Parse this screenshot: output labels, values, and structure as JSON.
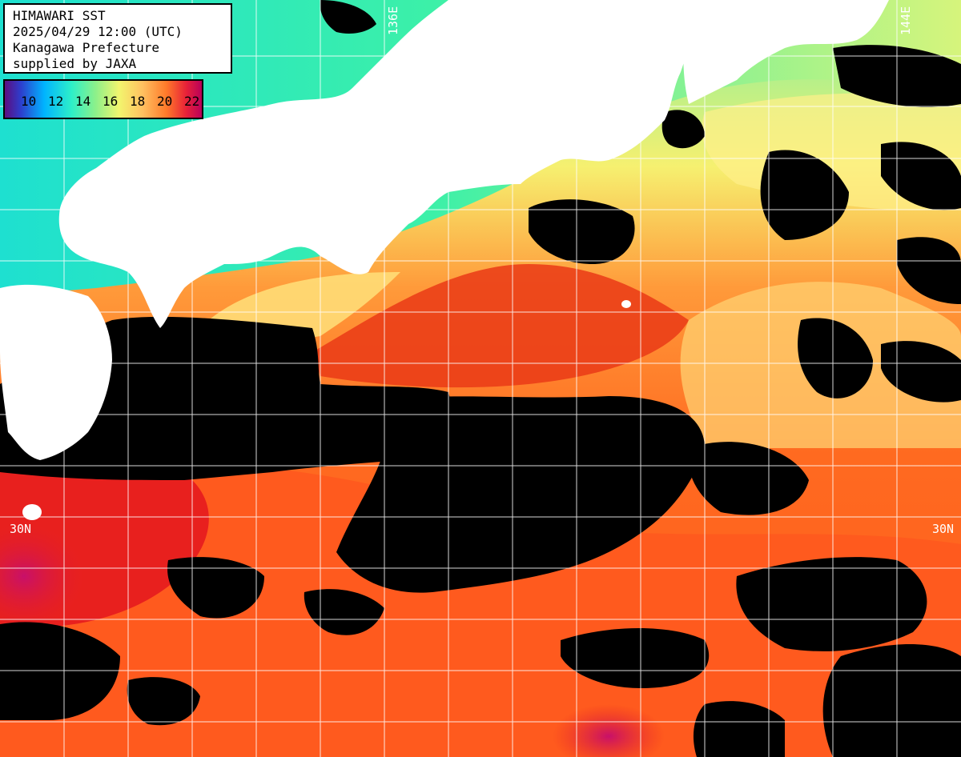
{
  "info": {
    "line1": "HIMAWARI SST",
    "line2": "2025/04/29 12:00 (UTC)",
    "line3": "Kanagawa Prefecture",
    "line4": "supplied by JAXA"
  },
  "legend": {
    "labels": [
      "10",
      "12",
      "14",
      "16",
      "18",
      "20",
      "22"
    ],
    "min_color": "#5c0d80",
    "max_color": "#b8005a"
  },
  "grid_labels": {
    "lat_left": "30N",
    "lat_right": "30N",
    "lon_136": "136E",
    "lon_144": "144E"
  },
  "colors": {
    "land": "#ffffff",
    "cloud_mask": "#000000",
    "grid": "#ffffff",
    "warm_sea": "#ff6a1c",
    "hot_sea": "#e8201e",
    "cool_sea": "#2ef0a8",
    "mild_sea": "#ffc868"
  }
}
